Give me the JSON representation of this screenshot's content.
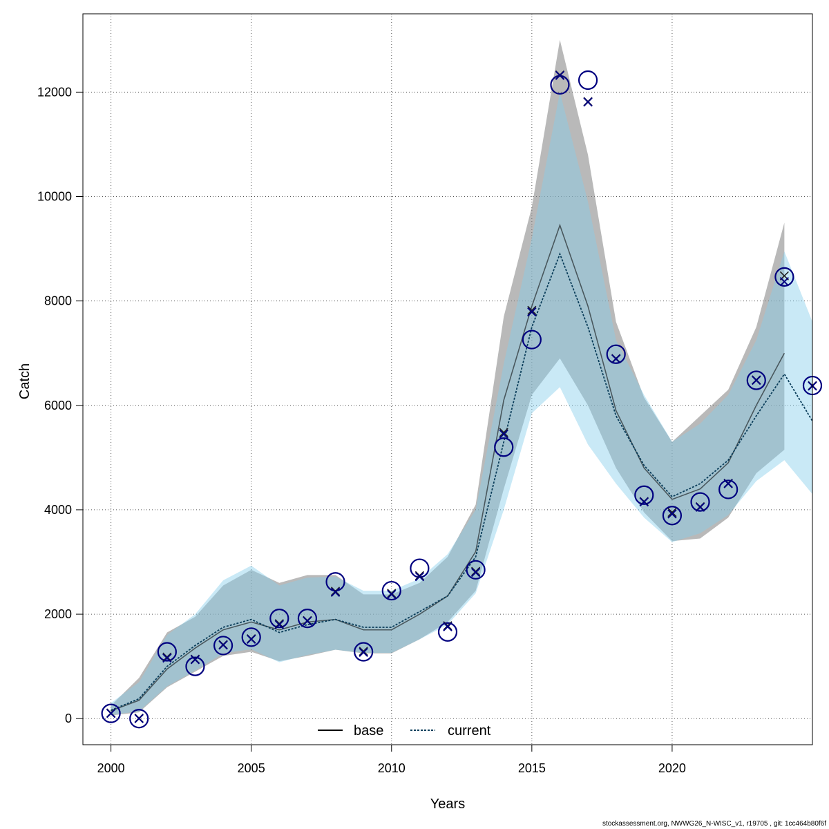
{
  "chart_data": {
    "type": "line",
    "title": "",
    "xlabel": "Years",
    "ylabel": "Catch",
    "xlim": [
      1999,
      2025
    ],
    "ylim": [
      -500,
      13500
    ],
    "grid": true,
    "x_ticks": [
      2000,
      2005,
      2010,
      2015,
      2020
    ],
    "y_ticks": [
      0,
      2000,
      4000,
      6000,
      8000,
      10000,
      12000
    ],
    "legend": {
      "position": "bottom",
      "entries": [
        "base",
        "current"
      ]
    },
    "x": [
      2000,
      2001,
      2002,
      2003,
      2004,
      2005,
      2006,
      2007,
      2008,
      2009,
      2010,
      2011,
      2012,
      2013,
      2014,
      2015,
      2016,
      2017,
      2018,
      2019,
      2020,
      2021,
      2022,
      2023,
      2024,
      2025
    ],
    "series": [
      {
        "name": "base",
        "style": "solid",
        "color": "#000000",
        "band_color": "#808080",
        "x": [
          2000,
          2001,
          2002,
          2003,
          2004,
          2005,
          2006,
          2007,
          2008,
          2009,
          2010,
          2011,
          2012,
          2013,
          2014,
          2015,
          2016,
          2017,
          2018,
          2019,
          2020,
          2021,
          2022,
          2023,
          2024
        ],
        "values": [
          150,
          350,
          950,
          1350,
          1700,
          1850,
          1700,
          1850,
          1900,
          1700,
          1700,
          2000,
          2350,
          3200,
          6100,
          7900,
          9450,
          7900,
          5900,
          4800,
          4200,
          4400,
          4900,
          6000,
          7000
        ],
        "lower": [
          60,
          120,
          600,
          900,
          1200,
          1280,
          1100,
          1200,
          1320,
          1250,
          1250,
          1520,
          1850,
          2450,
          4400,
          6200,
          6900,
          6000,
          4800,
          3950,
          3400,
          3450,
          3850,
          4700,
          5150
        ],
        "upper": [
          250,
          780,
          1650,
          1950,
          2550,
          2850,
          2600,
          2750,
          2750,
          2380,
          2380,
          2600,
          3100,
          4100,
          7700,
          9800,
          13000,
          10800,
          7600,
          6150,
          5300,
          5800,
          6300,
          7500,
          9500
        ]
      },
      {
        "name": "current",
        "style": "dashed",
        "color": "#0a3d5a",
        "band_color": "#87ceeb",
        "x": [
          2000,
          2001,
          2002,
          2003,
          2004,
          2005,
          2006,
          2007,
          2008,
          2009,
          2010,
          2011,
          2012,
          2013,
          2014,
          2015,
          2016,
          2017,
          2018,
          2019,
          2020,
          2021,
          2022,
          2023,
          2024,
          2025
        ],
        "values": [
          160,
          380,
          1000,
          1400,
          1750,
          1900,
          1650,
          1800,
          1900,
          1750,
          1750,
          2050,
          2350,
          3100,
          5300,
          7500,
          8900,
          7500,
          5800,
          4850,
          4250,
          4500,
          4950,
          5800,
          6600,
          5700
        ],
        "lower": [
          70,
          140,
          620,
          920,
          1250,
          1330,
          1080,
          1220,
          1320,
          1260,
          1260,
          1520,
          1800,
          2400,
          4000,
          5850,
          6350,
          5250,
          4500,
          3850,
          3380,
          3550,
          3900,
          4550,
          4950,
          4300
        ],
        "upper": [
          300,
          700,
          1600,
          2000,
          2650,
          2930,
          2550,
          2700,
          2720,
          2450,
          2450,
          2680,
          3150,
          4000,
          6800,
          9200,
          12000,
          9900,
          7250,
          6200,
          5300,
          5650,
          6200,
          7250,
          8950,
          7600
        ]
      }
    ],
    "observed": {
      "name": "observed",
      "marker": "circle",
      "color": "#000080",
      "x": [
        2000,
        2001,
        2002,
        2003,
        2004,
        2005,
        2006,
        2007,
        2008,
        2009,
        2010,
        2011,
        2012,
        2013,
        2014,
        2015,
        2016,
        2017,
        2018,
        2019,
        2020,
        2021,
        2022,
        2023,
        2024,
        2025
      ],
      "values": [
        100,
        0,
        1280,
        1000,
        1400,
        1560,
        1920,
        1920,
        2620,
        1280,
        2450,
        2880,
        1660,
        2850,
        5200,
        7260,
        12140,
        12230,
        6980,
        4280,
        3890,
        4150,
        4390,
        6480,
        8460,
        6380
      ]
    },
    "predicted": {
      "name": "predicted",
      "marker": "x",
      "x": [
        2000,
        2001,
        2002,
        2003,
        2004,
        2005,
        2006,
        2007,
        2008,
        2009,
        2010,
        2011,
        2012,
        2013,
        2014,
        2015,
        2016,
        2017,
        2018,
        2019,
        2020,
        2021,
        2022,
        2023,
        2024,
        2025
      ],
      "base": [
        110,
        10,
        1180,
        1140,
        1420,
        1530,
        1820,
        1880,
        2440,
        1290,
        2400,
        2740,
        1780,
        2820,
        5480,
        7820,
        12330,
        11820,
        6900,
        4160,
        3950,
        4060,
        4510,
        6490,
        8480,
        6380
      ],
      "current": [
        100,
        0,
        1160,
        1130,
        1410,
        1520,
        1800,
        1870,
        2420,
        1270,
        2380,
        2720,
        1760,
        2800,
        5450,
        7790,
        12320,
        11810,
        6890,
        4150,
        3920,
        4050,
        4500,
        6480,
        8370,
        6370
      ]
    }
  },
  "footer_text": "stockassessment.org, NWWG26_N-WISC_v1, r19705 , git: 1cc464b80f6f"
}
